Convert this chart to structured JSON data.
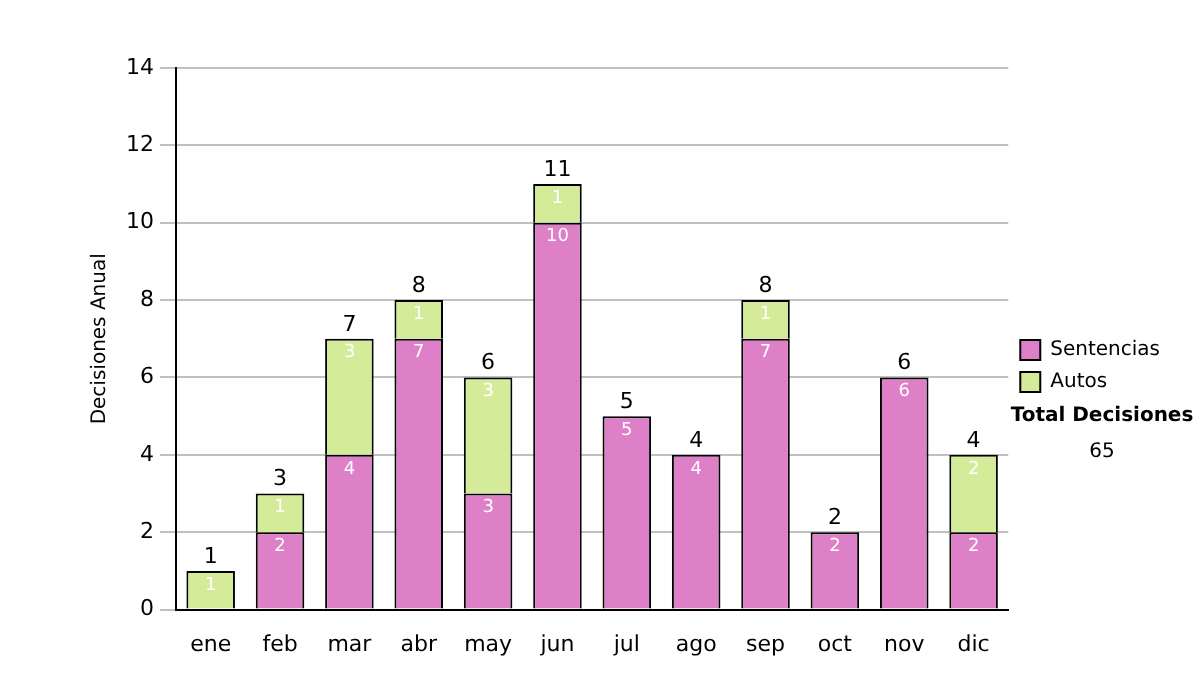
{
  "chart_data": {
    "type": "bar",
    "stacked": true,
    "ylabel": "Decisiones Anual",
    "categories": [
      "ene",
      "feb",
      "mar",
      "abr",
      "may",
      "jun",
      "jul",
      "ago",
      "sep",
      "oct",
      "nov",
      "dic"
    ],
    "series": [
      {
        "name": "Sentencias",
        "color": "#de80c8",
        "values": [
          0,
          2,
          4,
          7,
          3,
          10,
          5,
          4,
          7,
          2,
          6,
          2
        ],
        "value_labels": [
          null,
          "2",
          "4",
          "7",
          "3",
          "10",
          "5",
          "4",
          "7",
          "2",
          "6",
          "2"
        ]
      },
      {
        "name": "Autos",
        "color": "#d4ec9a",
        "values": [
          1,
          1,
          3,
          1,
          3,
          1,
          0,
          0,
          1,
          0,
          0,
          2
        ],
        "value_labels": [
          "1",
          "1",
          "3",
          "1",
          "3",
          "1",
          null,
          null,
          "1",
          null,
          null,
          "2"
        ]
      }
    ],
    "totals": [
      "1",
      "3",
      "7",
      "8",
      "6",
      "11",
      "5",
      "4",
      "8",
      "2",
      "6",
      "4"
    ],
    "ylim": [
      0,
      14
    ],
    "yticks": [
      0,
      2,
      4,
      6,
      8,
      10,
      12,
      14
    ],
    "grid": "y",
    "legend": "right",
    "annotations": [
      "Total Decisiones",
      "65"
    ]
  }
}
